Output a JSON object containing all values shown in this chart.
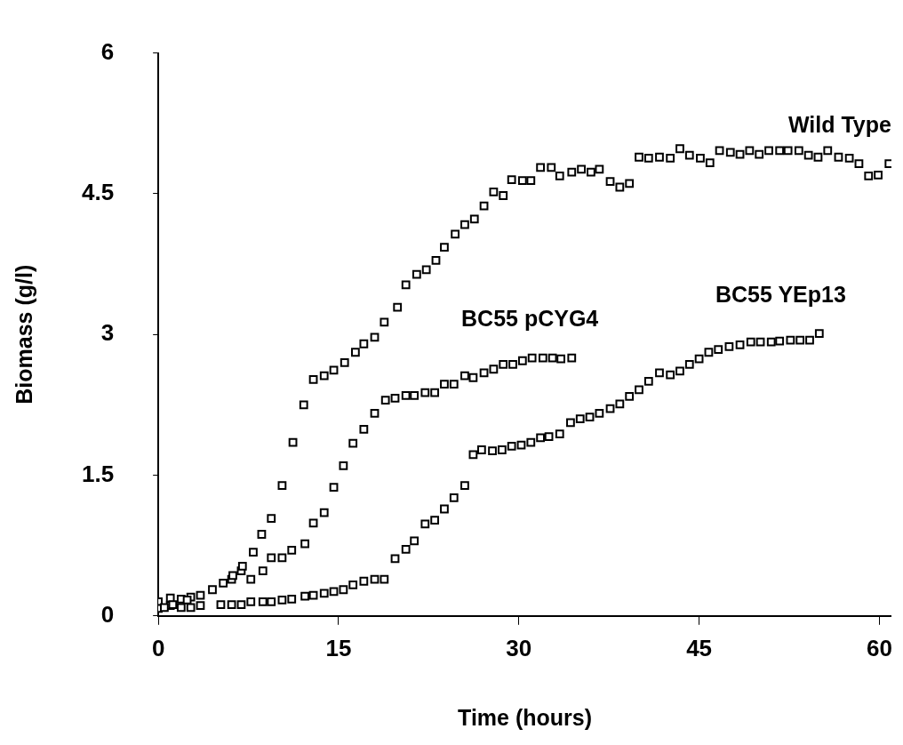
{
  "chart_data": {
    "type": "scatter",
    "xlabel": "Time (hours)",
    "ylabel": "Biomass (g/l)",
    "xlim": [
      0,
      61
    ],
    "xticks": [
      0,
      15,
      30,
      45,
      60
    ],
    "ylim": [
      0,
      6
    ],
    "yticks": [
      0,
      1.5,
      3,
      4.5,
      6
    ],
    "grid": false,
    "legend": false,
    "marker": "square",
    "series": [
      {
        "name": "Wild Type",
        "color": "#000000",
        "x": [
          0,
          0.5,
          1.2,
          2.4,
          3.5,
          4.5,
          5.4,
          6.2,
          7.0,
          7.9,
          8.6,
          9.4,
          10.3,
          11.2,
          12.1,
          12.9,
          13.8,
          14.6,
          15.5,
          16.4,
          17.1,
          18.0,
          18.8,
          19.9,
          20.6,
          21.5,
          22.3,
          23.1,
          23.8,
          24.7,
          25.5,
          26.3,
          27.1,
          27.9,
          28.7,
          29.4,
          30.3,
          31.0,
          31.8,
          32.7,
          33.4,
          34.4,
          35.2,
          36.0,
          36.7,
          37.6,
          38.4,
          39.2,
          40.0,
          40.8,
          41.7,
          42.6,
          43.4,
          44.2,
          45.1,
          45.9,
          46.7,
          47.6,
          48.4,
          49.2,
          50.0,
          50.8,
          51.7,
          52.4,
          53.3,
          54.1,
          54.9,
          55.7,
          56.6,
          57.5,
          58.3,
          59.1,
          59.9,
          60.8
        ],
        "values": [
          0.08,
          0.09,
          0.12,
          0.17,
          0.22,
          0.28,
          0.35,
          0.43,
          0.53,
          0.68,
          0.87,
          1.04,
          1.39,
          1.85,
          2.25,
          2.52,
          2.56,
          2.62,
          2.7,
          2.81,
          2.9,
          2.97,
          3.13,
          3.29,
          3.53,
          3.64,
          3.69,
          3.79,
          3.93,
          4.07,
          4.17,
          4.23,
          4.37,
          4.52,
          4.48,
          4.65,
          4.64,
          4.64,
          4.78,
          4.78,
          4.69,
          4.73,
          4.76,
          4.73,
          4.76,
          4.63,
          4.57,
          4.61,
          4.89,
          4.88,
          4.89,
          4.88,
          4.98,
          4.91,
          4.88,
          4.83,
          4.96,
          4.94,
          4.92,
          4.96,
          4.92,
          4.96,
          4.96,
          4.96,
          4.96,
          4.91,
          4.89,
          4.96,
          4.89,
          4.88,
          4.82,
          4.69,
          4.7,
          4.82
        ]
      },
      {
        "name": "BC55 pCYG4",
        "color": "#000000",
        "x": [
          0,
          1.0,
          1.9,
          2.7,
          3.5,
          4.5,
          5.3,
          6.1,
          6.9,
          7.7,
          8.7,
          9.4,
          10.3,
          11.1,
          12.2,
          12.9,
          13.8,
          14.6,
          15.4,
          16.2,
          17.1,
          18.0,
          18.9,
          19.7,
          20.6,
          21.3,
          22.2,
          23.0,
          23.8,
          24.6,
          25.5,
          26.2,
          27.1,
          27.9,
          28.7,
          29.5,
          30.3,
          31.1,
          32.0,
          32.8,
          33.5,
          34.4
        ],
        "values": [
          0.15,
          0.19,
          0.18,
          0.2,
          null,
          null,
          null,
          0.39,
          0.48,
          0.39,
          0.48,
          0.62,
          0.62,
          0.7,
          0.77,
          0.99,
          1.1,
          1.37,
          1.6,
          1.84,
          1.99,
          2.16,
          2.3,
          2.32,
          2.35,
          2.35,
          2.38,
          2.38,
          2.47,
          2.47,
          2.56,
          2.54,
          2.59,
          2.63,
          2.68,
          2.68,
          2.72,
          2.75,
          2.75,
          2.75,
          2.74,
          2.75
        ]
      },
      {
        "name": "BC55 YEp13",
        "color": "#000000",
        "x": [
          0,
          1.0,
          1.9,
          2.7,
          3.5,
          5.2,
          6.1,
          6.9,
          7.7,
          8.7,
          9.4,
          10.3,
          11.1,
          12.2,
          12.9,
          13.8,
          14.6,
          15.4,
          16.2,
          17.1,
          18.0,
          18.8,
          19.7,
          20.6,
          21.3,
          22.2,
          23.0,
          23.8,
          24.6,
          25.5,
          26.2,
          26.9,
          27.8,
          28.6,
          29.4,
          30.2,
          31.0,
          31.8,
          32.5,
          33.4,
          34.3,
          35.1,
          35.9,
          36.7,
          37.6,
          38.4,
          39.2,
          40.0,
          40.8,
          41.7,
          42.6,
          43.4,
          44.2,
          45.0,
          45.8,
          46.6,
          47.5,
          48.4,
          49.3,
          50.1,
          51.0,
          51.7,
          52.6,
          53.4,
          54.2,
          55.0
        ],
        "values": [
          0.09,
          0.11,
          0.09,
          0.09,
          0.11,
          0.12,
          0.12,
          0.12,
          0.15,
          0.15,
          0.15,
          0.17,
          0.18,
          0.21,
          0.22,
          0.24,
          0.26,
          0.28,
          0.33,
          0.37,
          0.39,
          0.39,
          0.61,
          0.71,
          0.8,
          0.98,
          1.02,
          1.14,
          1.26,
          1.39,
          1.72,
          1.77,
          1.76,
          1.77,
          1.81,
          1.82,
          1.85,
          1.9,
          1.91,
          1.94,
          2.06,
          2.1,
          2.12,
          2.16,
          2.21,
          2.26,
          2.34,
          2.41,
          2.5,
          2.59,
          2.57,
          2.61,
          2.68,
          2.74,
          2.81,
          2.84,
          2.87,
          2.89,
          2.92,
          2.92,
          2.92,
          2.93,
          2.94,
          2.94,
          2.94,
          3.01
        ]
      }
    ]
  }
}
